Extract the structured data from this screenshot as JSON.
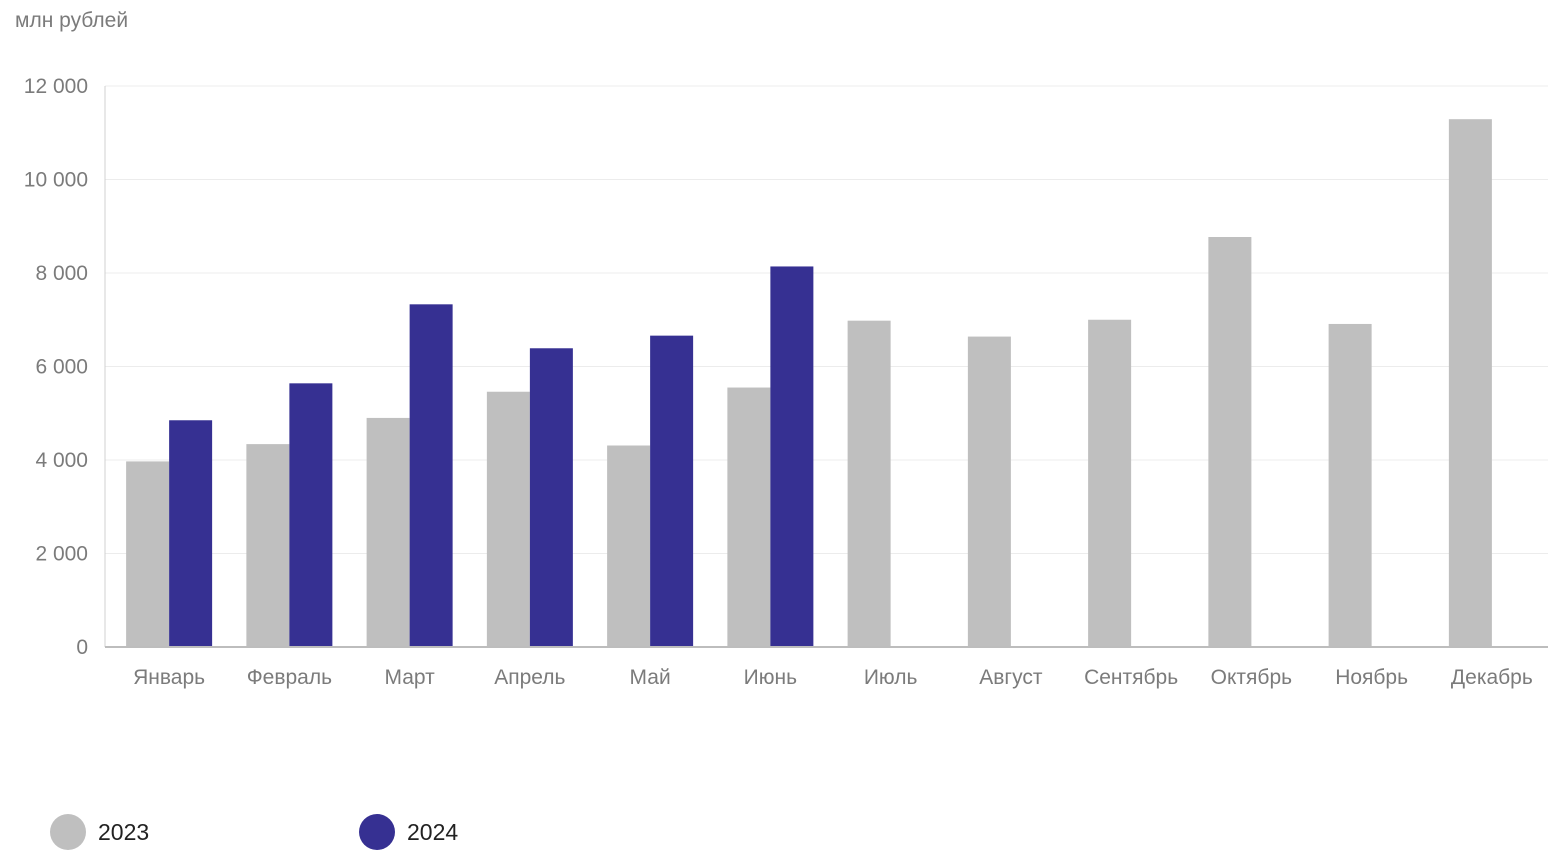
{
  "chart_data": {
    "type": "bar",
    "unit_label": "млн рублей",
    "categories": [
      "Январь",
      "Февраль",
      "Март",
      "Апрель",
      "Май",
      "Июнь",
      "Июль",
      "Август",
      "Сентябрь",
      "Октябрь",
      "Ноябрь",
      "Декабрь"
    ],
    "series": [
      {
        "name": "2023",
        "color": "#bfbfbf",
        "values": [
          3970,
          4340,
          4900,
          5460,
          4310,
          5550,
          6980,
          6640,
          7000,
          8770,
          6910,
          11290
        ]
      },
      {
        "name": "2024",
        "color": "#363092",
        "values": [
          4850,
          5640,
          7330,
          6390,
          6660,
          8140,
          null,
          null,
          null,
          null,
          null,
          null
        ]
      }
    ],
    "ylim": [
      0,
      12000
    ],
    "yticks": [
      0,
      2000,
      4000,
      6000,
      8000,
      10000,
      12000
    ],
    "ytick_labels": [
      "0",
      "2 000",
      "4 000",
      "6 000",
      "8 000",
      "10 000",
      "12 000"
    ],
    "grid": true,
    "legend_position": "bottom-left"
  }
}
